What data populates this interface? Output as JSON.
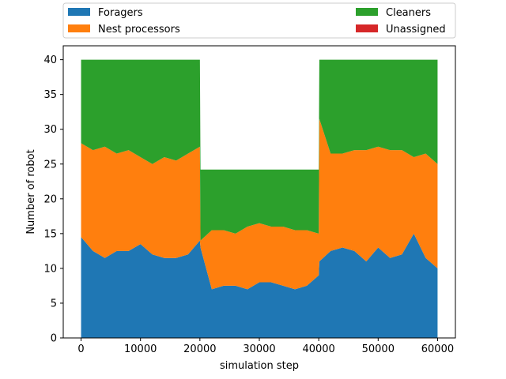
{
  "chart_data": {
    "type": "area",
    "stacked": true,
    "title": "",
    "xlabel": "simulation step",
    "ylabel": "Number of robot",
    "xlim": [
      -3000,
      63000
    ],
    "ylim": [
      0,
      42
    ],
    "xticks": [
      0,
      10000,
      20000,
      30000,
      40000,
      50000,
      60000
    ],
    "yticks": [
      0,
      5,
      10,
      15,
      20,
      25,
      30,
      35,
      40
    ],
    "grid": false,
    "legend_placement": "above plot, two columns",
    "x": [
      0,
      2000,
      4000,
      6000,
      8000,
      10000,
      12000,
      14000,
      16000,
      18000,
      20000,
      20100,
      22000,
      24000,
      26000,
      28000,
      30000,
      32000,
      34000,
      36000,
      38000,
      40000,
      40100,
      42000,
      44000,
      46000,
      48000,
      50000,
      52000,
      54000,
      56000,
      58000,
      60000
    ],
    "series": [
      {
        "name": "Foragers",
        "color": "#1f77b4",
        "values": [
          14.5,
          12.5,
          11.5,
          12.5,
          12.5,
          13.5,
          12,
          11.5,
          11.5,
          12,
          14,
          13,
          7,
          7.5,
          7.5,
          7,
          8,
          8,
          7.5,
          7,
          7.5,
          9,
          11,
          12.5,
          13,
          12.5,
          11,
          13,
          11.5,
          12,
          15,
          11.5,
          10
        ]
      },
      {
        "name": "Nest processors",
        "color": "#ff7f0e",
        "values": [
          13.5,
          14.5,
          16,
          14,
          14.5,
          12.5,
          13,
          14.5,
          14,
          14.5,
          13.5,
          1,
          8.5,
          8,
          7.5,
          9,
          8.5,
          8,
          8.5,
          8.5,
          8,
          6,
          20.5,
          14,
          13.5,
          14.5,
          16,
          14.5,
          15.5,
          15,
          11,
          15,
          15
        ]
      },
      {
        "name": "Cleaners",
        "color": "#2ca02c",
        "values": [
          12,
          13,
          12.5,
          13.5,
          13,
          14,
          15,
          14,
          14.5,
          13.5,
          12.5,
          10.2,
          8.7,
          8.7,
          9.2,
          8.2,
          7.7,
          8.2,
          8.2,
          8.7,
          8.7,
          9.2,
          8.5,
          13.5,
          13.5,
          13,
          13,
          12.5,
          13,
          13,
          14,
          13.5,
          15
        ]
      },
      {
        "name": "Unassigned",
        "color": "#d62728",
        "values": [
          0,
          0,
          0,
          0,
          0,
          0,
          0,
          0,
          0,
          0,
          0,
          0,
          0,
          0,
          0,
          0,
          0,
          0,
          0,
          0,
          0,
          0,
          0,
          0,
          0,
          0,
          0,
          0,
          0,
          0,
          0,
          0,
          0
        ]
      }
    ]
  }
}
